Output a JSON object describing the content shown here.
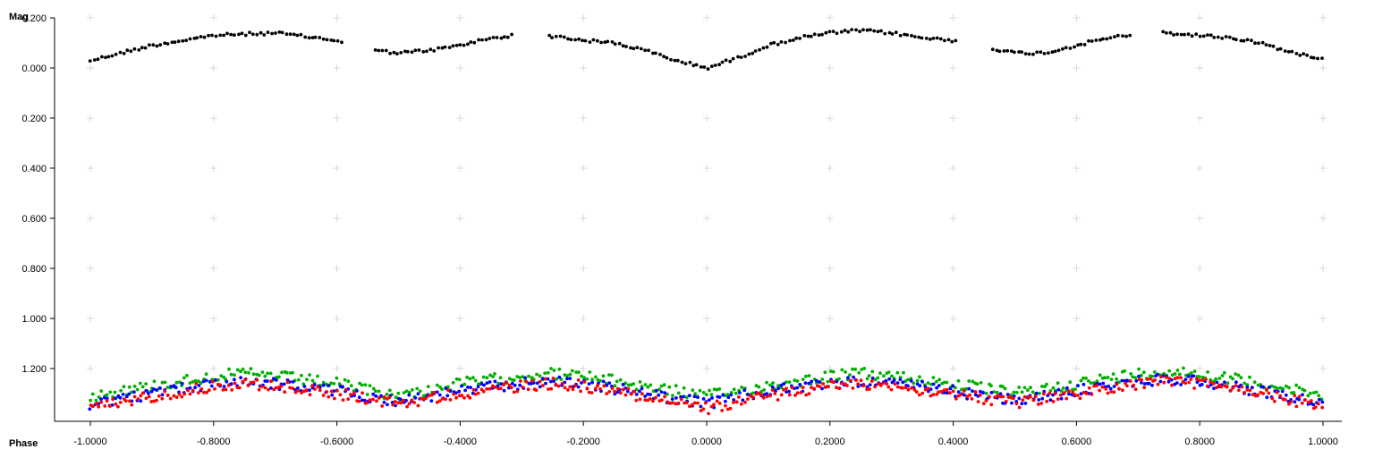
{
  "chart_data": {
    "type": "scatter",
    "title": "",
    "xlabel": "Phase",
    "ylabel": "Mag",
    "xlim": [
      -1.0,
      1.0
    ],
    "ylim": [
      -0.2,
      1.4
    ],
    "y_inverted": true,
    "grid": "plus-markers",
    "x_ticks": [
      -1.0,
      -0.8,
      -0.6,
      -0.4,
      -0.2,
      0.0,
      0.2,
      0.4,
      0.6,
      0.8,
      1.0
    ],
    "x_tick_labels": [
      "-1.0000",
      "-0.8000",
      "-0.6000",
      "-0.4000",
      "-0.2000",
      "0.0000",
      "0.2000",
      "0.4000",
      "0.6000",
      "0.8000",
      "1.0000"
    ],
    "y_ticks": [
      -0.2,
      0.0,
      0.2,
      0.4,
      0.6,
      0.8,
      1.0,
      1.2
    ],
    "y_tick_labels": [
      "-0.200",
      "0.000",
      "0.200",
      "0.400",
      "0.600",
      "0.800",
      "1.000",
      "1.200"
    ],
    "series": [
      {
        "color": "#000000",
        "gaps": [
          [
            -0.59,
            -0.54
          ],
          [
            -0.31,
            -0.26
          ],
          [
            0.41,
            0.46
          ],
          [
            0.69,
            0.74
          ]
        ],
        "x": [
          -1.0,
          -0.9,
          -0.8,
          -0.7,
          -0.6,
          -0.54,
          -0.5,
          -0.45,
          -0.4,
          -0.35,
          -0.31,
          -0.26,
          -0.2,
          -0.15,
          -0.1,
          -0.05,
          0.0,
          0.05,
          0.1,
          0.15,
          0.2,
          0.25,
          0.3,
          0.35,
          0.4,
          0.46,
          0.5,
          0.55,
          0.6,
          0.65,
          0.69,
          0.74,
          0.8,
          0.85,
          0.9,
          0.95,
          1.0
        ],
        "y": [
          -0.03,
          -0.09,
          -0.13,
          -0.14,
          -0.11,
          -0.07,
          -0.06,
          -0.07,
          -0.09,
          -0.12,
          -0.13,
          -0.13,
          -0.11,
          -0.1,
          -0.07,
          -0.03,
          0.0,
          -0.04,
          -0.09,
          -0.12,
          -0.14,
          -0.15,
          -0.14,
          -0.12,
          -0.11,
          -0.08,
          -0.06,
          -0.06,
          -0.09,
          -0.12,
          -0.13,
          -0.14,
          -0.13,
          -0.12,
          -0.1,
          -0.06,
          -0.04
        ]
      },
      {
        "color": "#00b000",
        "x": [
          -1.0,
          -0.9,
          -0.8,
          -0.75,
          -0.7,
          -0.6,
          -0.5,
          -0.4,
          -0.3,
          -0.25,
          -0.2,
          -0.1,
          0.0,
          0.1,
          0.2,
          0.25,
          0.3,
          0.4,
          0.5,
          0.6,
          0.7,
          0.75,
          0.8,
          0.9,
          1.0
        ],
        "y": [
          1.31,
          1.27,
          1.23,
          1.22,
          1.23,
          1.26,
          1.31,
          1.26,
          1.23,
          1.22,
          1.23,
          1.27,
          1.31,
          1.27,
          1.23,
          1.22,
          1.23,
          1.26,
          1.3,
          1.26,
          1.22,
          1.21,
          1.22,
          1.26,
          1.31
        ]
      },
      {
        "color": "#0000ff",
        "x": [
          -1.0,
          -0.9,
          -0.8,
          -0.75,
          -0.7,
          -0.6,
          -0.5,
          -0.4,
          -0.3,
          -0.25,
          -0.2,
          -0.1,
          0.0,
          0.1,
          0.2,
          0.25,
          0.3,
          0.4,
          0.5,
          0.6,
          0.7,
          0.75,
          0.8,
          0.9,
          1.0
        ],
        "y": [
          1.34,
          1.3,
          1.26,
          1.25,
          1.26,
          1.29,
          1.33,
          1.29,
          1.26,
          1.25,
          1.26,
          1.3,
          1.34,
          1.29,
          1.26,
          1.25,
          1.26,
          1.29,
          1.33,
          1.29,
          1.25,
          1.24,
          1.25,
          1.29,
          1.34
        ]
      },
      {
        "color": "#ff0000",
        "x": [
          -1.0,
          -0.9,
          -0.8,
          -0.75,
          -0.7,
          -0.6,
          -0.5,
          -0.4,
          -0.3,
          -0.25,
          -0.2,
          -0.1,
          0.0,
          0.1,
          0.2,
          0.25,
          0.3,
          0.4,
          0.5,
          0.6,
          0.7,
          0.75,
          0.8,
          0.9,
          1.0
        ],
        "y": [
          1.36,
          1.31,
          1.27,
          1.26,
          1.27,
          1.3,
          1.34,
          1.3,
          1.27,
          1.26,
          1.27,
          1.31,
          1.36,
          1.31,
          1.27,
          1.26,
          1.27,
          1.3,
          1.34,
          1.3,
          1.26,
          1.25,
          1.26,
          1.3,
          1.35
        ]
      }
    ]
  }
}
